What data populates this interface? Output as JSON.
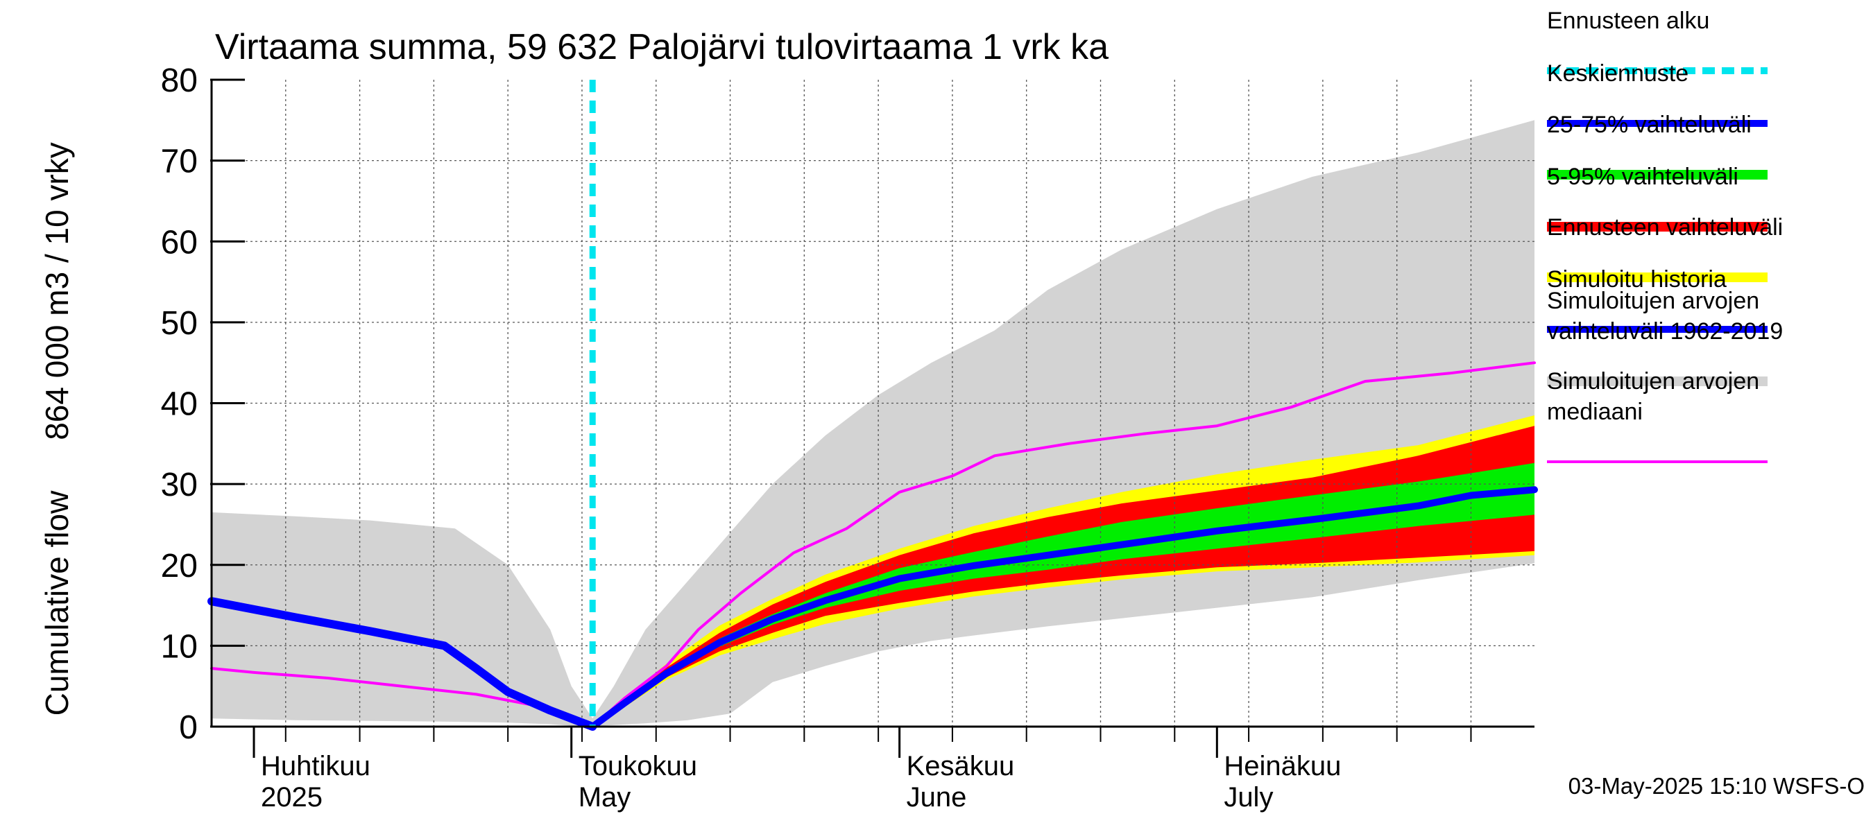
{
  "chart_data": {
    "type": "area",
    "title": "Virtaama summa, 59 632 Palojärvi tulovirtaama 1 vrk ka",
    "ylabel_line1": "Cumulative flow",
    "ylabel_line2": "864 000 m3 / 10 vrky",
    "ylim": [
      0,
      80
    ],
    "xlim": [
      "2025-03-28",
      "2025-07-31"
    ],
    "yticks": [
      0,
      10,
      20,
      30,
      40,
      50,
      60,
      70,
      80
    ],
    "grid": true,
    "legend_placement": "right",
    "forecast_start": "2025-05-03",
    "months": [
      {
        "fi": "Huhtikuu",
        "en": "2025",
        "start": "2025-04-01"
      },
      {
        "fi": "Toukokuu",
        "en": "May",
        "start": "2025-05-01"
      },
      {
        "fi": "Kesäkuu",
        "en": "June",
        "start": "2025-06-01"
      },
      {
        "fi": "Heinäkuu",
        "en": "July",
        "start": "2025-07-01"
      }
    ],
    "footer": "03-May-2025 15:10 WSFS-O",
    "colors": {
      "forecast_start": "#00e5ee",
      "mean_forecast": "#0000ff",
      "band_25_75": "#00ee00",
      "band_5_95": "#ff0000",
      "forecast_range": "#ffff00",
      "simulated_history": "#0000ff",
      "hist_range": "#d3d3d3",
      "hist_median": "#ff00ff"
    },
    "legend": [
      {
        "key": "forecast_start",
        "label": "Ennusteen alku",
        "style": "dashed"
      },
      {
        "key": "mean_forecast",
        "label": "Keskiennuste",
        "style": "line"
      },
      {
        "key": "band_25_75",
        "label": "25-75% vaihteluväli",
        "style": "band"
      },
      {
        "key": "band_5_95",
        "label": "5-95% vaihteluväli",
        "style": "band"
      },
      {
        "key": "forecast_range",
        "label": "Ennusteen vaihteluväli",
        "style": "band"
      },
      {
        "key": "simulated_history",
        "label": "Simuloitu historia",
        "style": "line"
      },
      {
        "key": "hist_range",
        "label": "Simuloitujen arvojen\nvaihteluväli 1962-2019",
        "style": "band"
      },
      {
        "key": "hist_median",
        "label": "Simuloitujen arvojen\nmediaani",
        "style": "thin"
      }
    ],
    "series": {
      "hist_range": {
        "dates": [
          "2025-03-28",
          "2025-04-05",
          "2025-04-12",
          "2025-04-20",
          "2025-04-25",
          "2025-04-29",
          "2025-05-01",
          "2025-05-03",
          "2025-05-05",
          "2025-05-08",
          "2025-05-12",
          "2025-05-16",
          "2025-05-20",
          "2025-05-25",
          "2025-05-30",
          "2025-06-04",
          "2025-06-10",
          "2025-06-15",
          "2025-06-22",
          "2025-07-01",
          "2025-07-10",
          "2025-07-20",
          "2025-07-31"
        ],
        "upper": [
          26.5,
          26,
          25.5,
          24.5,
          20,
          12,
          5,
          1,
          5,
          12,
          18,
          24,
          30,
          36,
          41,
          45,
          49,
          54,
          59,
          64,
          68,
          71,
          75
        ],
        "lower": [
          1,
          0.8,
          0.7,
          0.6,
          0.5,
          0.3,
          0.1,
          0.05,
          0.2,
          0.4,
          0.8,
          1.6,
          5.5,
          7.5,
          9.3,
          10.6,
          11.6,
          12.4,
          13.4,
          14.7,
          16.0,
          18.1,
          20.2
        ]
      },
      "forecast_range": {
        "dates": [
          "2025-05-03",
          "2025-05-06",
          "2025-05-10",
          "2025-05-15",
          "2025-05-20",
          "2025-05-25",
          "2025-06-01",
          "2025-06-08",
          "2025-06-15",
          "2025-06-22",
          "2025-07-01",
          "2025-07-10",
          "2025-07-20",
          "2025-07-31"
        ],
        "upper": [
          0.2,
          3.5,
          7.8,
          12.5,
          15.8,
          18.8,
          22,
          24.8,
          27,
          29,
          31.2,
          33,
          34.8,
          38.5
        ],
        "lower": [
          -0.2,
          2.4,
          5.8,
          8.8,
          10.8,
          12.7,
          14.6,
          16.1,
          17.2,
          18.2,
          19.2,
          19.7,
          20.3,
          21.2
        ]
      },
      "band_5_95": {
        "dates": [
          "2025-05-03",
          "2025-05-06",
          "2025-05-10",
          "2025-05-15",
          "2025-05-20",
          "2025-05-25",
          "2025-06-01",
          "2025-06-08",
          "2025-06-15",
          "2025-06-22",
          "2025-07-01",
          "2025-07-10",
          "2025-07-20",
          "2025-07-31"
        ],
        "upper": [
          0.1,
          3.2,
          7.3,
          11.6,
          15.1,
          17.9,
          21.2,
          23.9,
          25.9,
          27.6,
          29.2,
          30.8,
          33.5,
          37.2
        ],
        "lower": [
          -0.1,
          2.6,
          6.1,
          9.3,
          11.6,
          13.7,
          15.3,
          16.7,
          17.8,
          18.7,
          19.7,
          20.2,
          20.9,
          21.7
        ]
      },
      "band_25_75": {
        "dates": [
          "2025-05-03",
          "2025-05-06",
          "2025-05-10",
          "2025-05-15",
          "2025-05-20",
          "2025-05-25",
          "2025-06-01",
          "2025-06-08",
          "2025-06-15",
          "2025-06-22",
          "2025-07-01",
          "2025-07-10",
          "2025-07-20",
          "2025-07-31"
        ],
        "upper": [
          0.05,
          3.0,
          6.9,
          10.9,
          13.9,
          16.5,
          19.6,
          21.6,
          23.5,
          25.3,
          27.0,
          28.6,
          30.3,
          32.6
        ],
        "lower": [
          -0.05,
          2.8,
          6.4,
          9.9,
          12.6,
          14.7,
          16.8,
          18.3,
          19.4,
          20.7,
          22.0,
          23.3,
          24.8,
          26.2
        ]
      },
      "mean_forecast": {
        "dates": [
          "2025-05-03",
          "2025-05-06",
          "2025-05-10",
          "2025-05-15",
          "2025-05-20",
          "2025-05-25",
          "2025-06-01",
          "2025-06-08",
          "2025-06-15",
          "2025-06-22",
          "2025-07-01",
          "2025-07-10",
          "2025-07-20",
          "2025-07-25",
          "2025-07-31"
        ],
        "values": [
          0,
          2.9,
          6.6,
          10.4,
          13.3,
          15.6,
          18.3,
          19.9,
          21.2,
          22.5,
          24.2,
          25.6,
          27.3,
          28.6,
          29.3
        ]
      },
      "simulated_history": {
        "dates": [
          "2025-03-28",
          "2025-04-05",
          "2025-04-12",
          "2025-04-19",
          "2025-04-22",
          "2025-04-25",
          "2025-04-29",
          "2025-05-03"
        ],
        "values": [
          15.5,
          13.5,
          11.8,
          10.0,
          7.2,
          4.3,
          2.0,
          0
        ]
      },
      "hist_median": {
        "dates": [
          "2025-03-28",
          "2025-04-01",
          "2025-04-08",
          "2025-04-15",
          "2025-04-22",
          "2025-04-28",
          "2025-05-03",
          "2025-05-06",
          "2025-05-10",
          "2025-05-13",
          "2025-05-17",
          "2025-05-22",
          "2025-05-27",
          "2025-06-01",
          "2025-06-06",
          "2025-06-10",
          "2025-06-17",
          "2025-06-24",
          "2025-07-01",
          "2025-07-08",
          "2025-07-15",
          "2025-07-23",
          "2025-07-31"
        ],
        "values": [
          7.2,
          6.7,
          6.0,
          5.0,
          4.0,
          2.5,
          0,
          3.5,
          7.5,
          12.0,
          16.5,
          21.5,
          24.5,
          29.0,
          31.0,
          33.5,
          35.0,
          36.2,
          37.2,
          39.5,
          42.7,
          43.7,
          45.0
        ]
      }
    }
  }
}
